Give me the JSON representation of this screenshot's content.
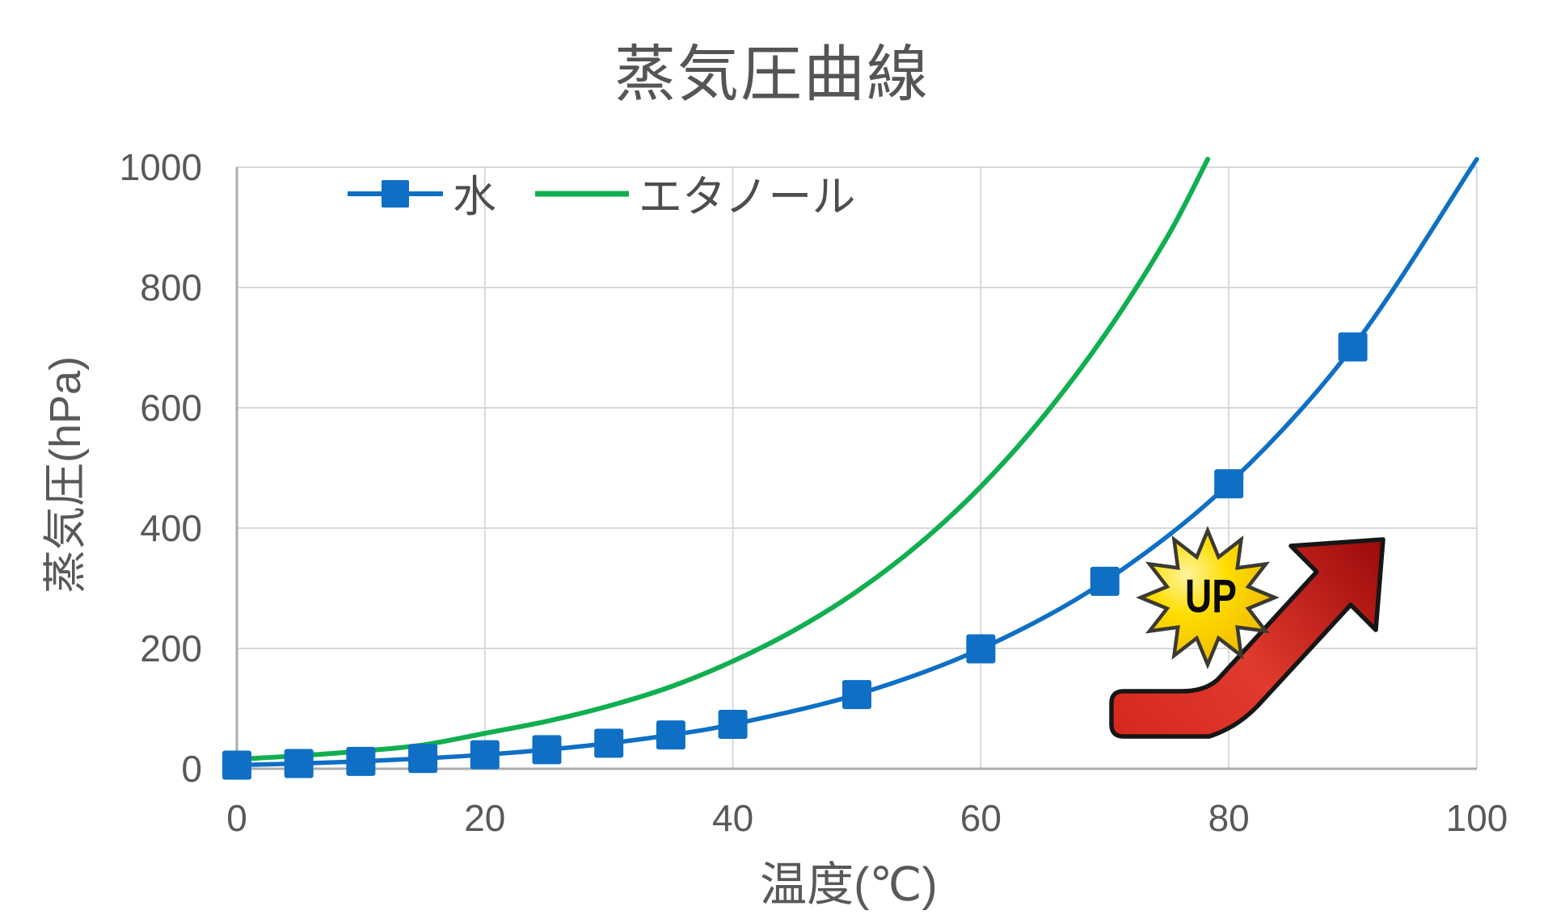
{
  "title": "蒸気圧曲線",
  "chart_data": {
    "type": "line",
    "title": "蒸気圧曲線",
    "xlabel": "温度(℃)",
    "ylabel": "蒸気圧(hPa)",
    "xlim": [
      0,
      100
    ],
    "ylim": [
      0,
      1000
    ],
    "x_ticks": [
      0,
      20,
      40,
      60,
      80,
      100
    ],
    "y_ticks": [
      0,
      200,
      400,
      600,
      800,
      1000
    ],
    "grid": true,
    "legend_position": "inside-top-left",
    "series": [
      {
        "name": "水",
        "color": "#0E6FC5",
        "marker": "square",
        "points": [
          [
            0,
            6.1
          ],
          [
            5,
            8.7
          ],
          [
            10,
            12.3
          ],
          [
            15,
            17.1
          ],
          [
            20,
            23.4
          ],
          [
            25,
            31.7
          ],
          [
            30,
            42.4
          ],
          [
            35,
            56.2
          ],
          [
            40,
            73.8
          ],
          [
            50,
            123.4
          ],
          [
            60,
            199.3
          ],
          [
            70,
            311.6
          ],
          [
            80,
            473.6
          ],
          [
            90,
            701.1
          ],
          [
            100,
            1013.3
          ]
        ],
        "marker_temps": [
          0,
          5,
          10,
          15,
          20,
          25,
          30,
          35,
          40,
          50,
          60,
          70,
          80,
          90
        ]
      },
      {
        "name": "エタノール",
        "color": "#10AF4F",
        "marker": "none",
        "points": [
          [
            0,
            15.8
          ],
          [
            5,
            21.7
          ],
          [
            10,
            29.4
          ],
          [
            15,
            39.5
          ],
          [
            20,
            58.9
          ],
          [
            25,
            78.9
          ],
          [
            30,
            104.3
          ],
          [
            35,
            136.4
          ],
          [
            40,
            178.8
          ],
          [
            45,
            230.7
          ],
          [
            50,
            294.7
          ],
          [
            55,
            373.3
          ],
          [
            60,
            469.0
          ],
          [
            65,
            584.4
          ],
          [
            70,
            721.0
          ],
          [
            75,
            882.6
          ],
          [
            78.3,
            1013.3
          ]
        ]
      }
    ],
    "annotation": {
      "label": "UP"
    }
  },
  "colors": {
    "grid": "#D9D9D9",
    "axis": "#ACACAC",
    "tick_text": "#595959",
    "title_text": "#555555",
    "star_light": "#FFF4A0",
    "star_mid": "#FFDD00",
    "star_dark": "#F2BE00",
    "star_stroke": "#3A3A32",
    "arrow_light": "#E8453A",
    "arrow_mid": "#D01A12",
    "arrow_dark": "#9C0A0A",
    "arrow_stroke": "#161616",
    "up_text": "#0A0A0A"
  }
}
